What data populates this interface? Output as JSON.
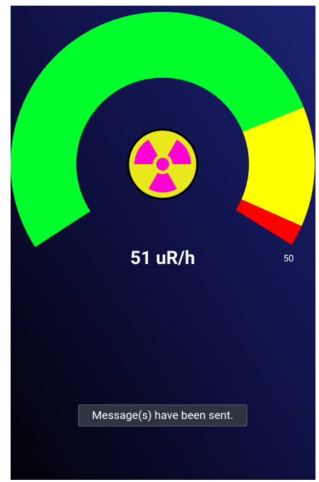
{
  "gauge": {
    "reading": "51 uR/h",
    "scale_label": "50"
  },
  "toast": {
    "message": "Message(s) have been sent."
  }
}
